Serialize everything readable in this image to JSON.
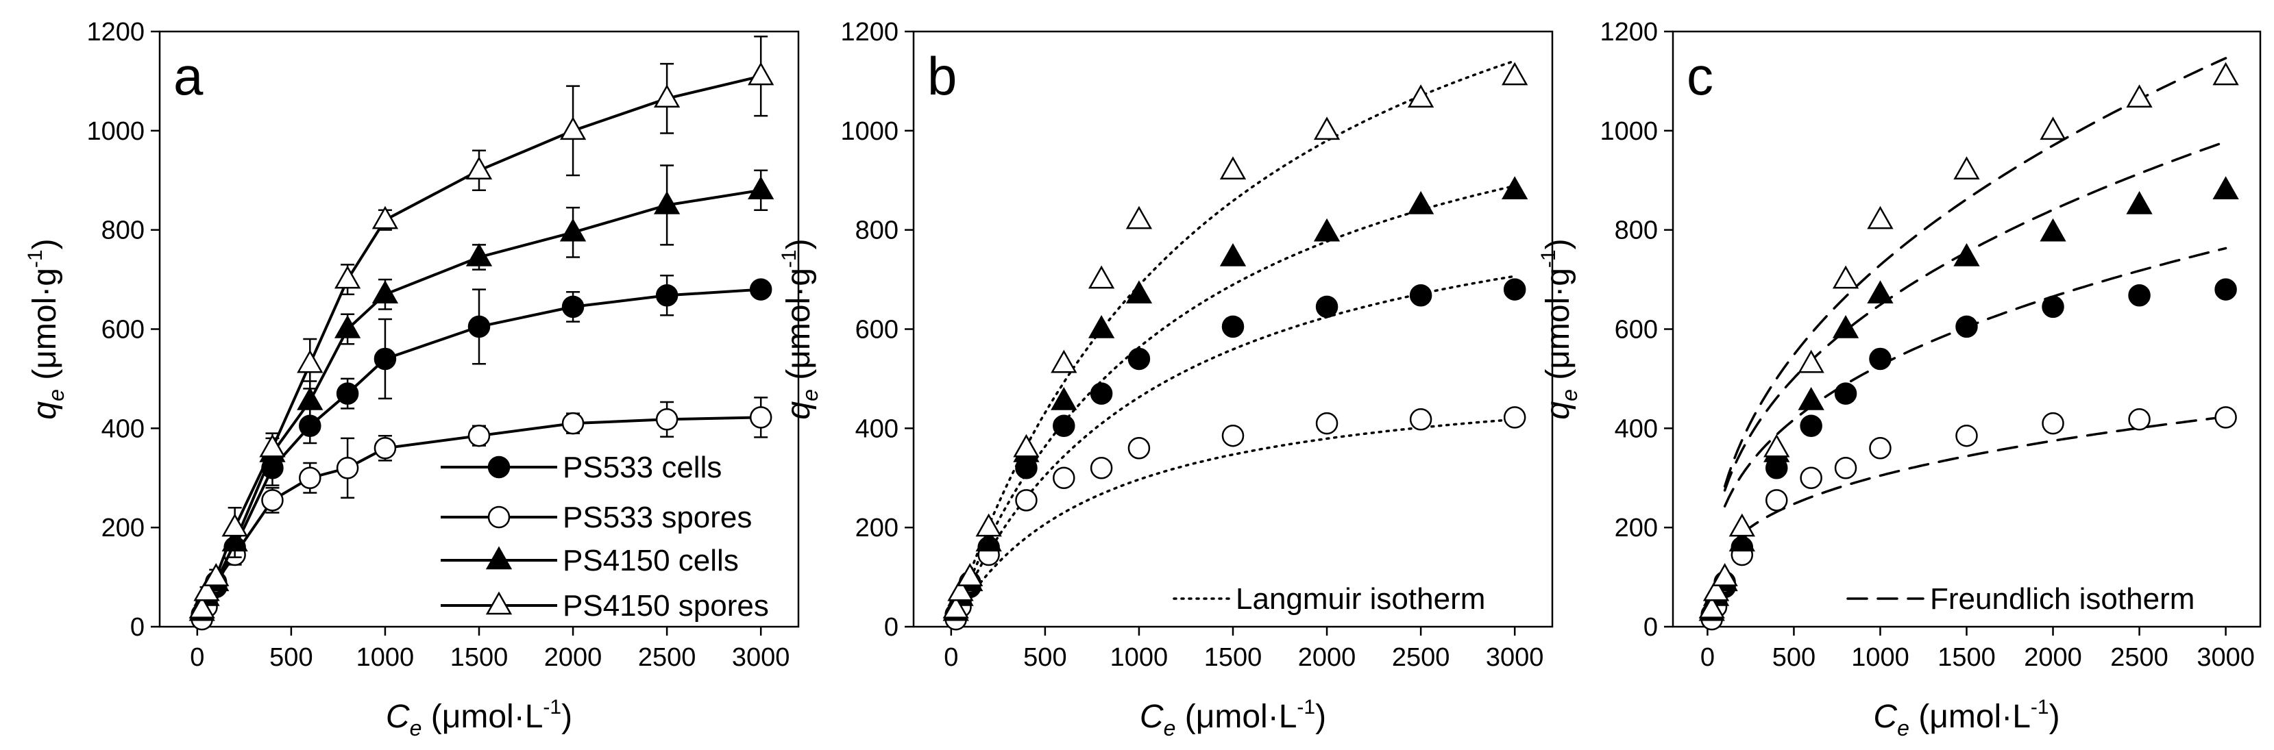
{
  "chart_data": [
    {
      "type": "scatter",
      "panel_label": "a",
      "xlim": [
        -200,
        3200
      ],
      "ylim": [
        0,
        1200
      ],
      "xticks": [
        0,
        500,
        1000,
        1500,
        2000,
        2500,
        3000
      ],
      "yticks": [
        0,
        200,
        400,
        600,
        800,
        1000,
        1200
      ],
      "xlabel": {
        "main": "C",
        "sub": "e",
        "unit": " (μmol·L",
        "sup": "-1",
        "close": ")"
      },
      "ylabel": {
        "main": "q",
        "sub": "e",
        "unit": " (μmol·g",
        "sup": "-1",
        "close": ")"
      },
      "series": [
        {
          "name": "PS533 cells",
          "marker": "circle",
          "filled": true,
          "connect": true,
          "x": [
            25,
            50,
            100,
            200,
            400,
            600,
            800,
            1000,
            1500,
            2000,
            2500,
            3000
          ],
          "y": [
            25,
            50,
            80,
            160,
            320,
            405,
            470,
            540,
            605,
            645,
            668,
            680
          ],
          "err": [
            0,
            8,
            12,
            25,
            35,
            35,
            30,
            80,
            75,
            30,
            40,
            15
          ]
        },
        {
          "name": "PS533 spores",
          "marker": "circle",
          "filled": false,
          "connect": true,
          "x": [
            25,
            50,
            100,
            200,
            400,
            600,
            800,
            1000,
            1500,
            2000,
            2500,
            3000
          ],
          "y": [
            15,
            40,
            90,
            145,
            255,
            300,
            320,
            360,
            385,
            410,
            418,
            422
          ],
          "err": [
            0,
            8,
            12,
            20,
            25,
            30,
            60,
            25,
            20,
            20,
            35,
            40
          ]
        },
        {
          "name": "PS4150 cells",
          "marker": "triangle",
          "filled": true,
          "connect": true,
          "x": [
            25,
            50,
            100,
            200,
            400,
            600,
            800,
            1000,
            1500,
            2000,
            2500,
            3000
          ],
          "y": [
            30,
            60,
            90,
            170,
            350,
            455,
            600,
            670,
            745,
            795,
            850,
            880
          ],
          "err": [
            0,
            8,
            12,
            30,
            30,
            40,
            30,
            30,
            25,
            50,
            80,
            40
          ]
        },
        {
          "name": "PS4150 spores",
          "marker": "triangle",
          "filled": false,
          "connect": true,
          "x": [
            25,
            50,
            100,
            200,
            400,
            600,
            800,
            1000,
            1500,
            2000,
            2500,
            3000
          ],
          "y": [
            35,
            70,
            100,
            200,
            360,
            530,
            700,
            820,
            920,
            1000,
            1065,
            1110
          ],
          "err": [
            0,
            10,
            15,
            40,
            30,
            50,
            30,
            20,
            40,
            90,
            70,
            80
          ]
        }
      ],
      "legend": {
        "position": "bottom-right",
        "entries": [
          "PS533 cells",
          "PS533 spores",
          "PS4150 cells",
          "PS4150 spores"
        ]
      }
    },
    {
      "type": "scatter",
      "panel_label": "b",
      "xlim": [
        -200,
        3200
      ],
      "ylim": [
        0,
        1200
      ],
      "xticks": [
        0,
        500,
        1000,
        1500,
        2000,
        2500,
        3000
      ],
      "yticks": [
        0,
        200,
        400,
        600,
        800,
        1000,
        1200
      ],
      "xlabel": {
        "main": "C",
        "sub": "e",
        "unit": " (μmol·L",
        "sup": "-1",
        "close": ")"
      },
      "ylabel": {
        "main": "q",
        "sub": "e",
        "unit": " (μmol·g",
        "sup": "-1",
        "close": ")"
      },
      "series": [
        {
          "name": "PS533 cells",
          "marker": "circle",
          "filled": true,
          "x": [
            25,
            50,
            100,
            200,
            400,
            600,
            800,
            1000,
            1500,
            2000,
            2500,
            3000
          ],
          "y": [
            25,
            50,
            80,
            160,
            320,
            405,
            470,
            540,
            605,
            645,
            668,
            680
          ]
        },
        {
          "name": "PS533 spores",
          "marker": "circle",
          "filled": false,
          "x": [
            25,
            50,
            100,
            200,
            400,
            600,
            800,
            1000,
            1500,
            2000,
            2500,
            3000
          ],
          "y": [
            15,
            40,
            90,
            145,
            255,
            300,
            320,
            360,
            385,
            410,
            418,
            422
          ]
        },
        {
          "name": "PS4150 cells",
          "marker": "triangle",
          "filled": true,
          "x": [
            25,
            50,
            100,
            200,
            400,
            600,
            800,
            1000,
            1500,
            2000,
            2500,
            3000
          ],
          "y": [
            30,
            60,
            90,
            170,
            350,
            455,
            600,
            670,
            745,
            795,
            850,
            880
          ]
        },
        {
          "name": "PS4150 spores",
          "marker": "triangle",
          "filled": false,
          "x": [
            25,
            50,
            100,
            200,
            400,
            600,
            800,
            1000,
            1500,
            2000,
            2500,
            3000
          ],
          "y": [
            35,
            70,
            100,
            200,
            360,
            530,
            700,
            820,
            920,
            1000,
            1065,
            1110
          ]
        }
      ],
      "fits": {
        "model": "langmuir",
        "style": "dotted",
        "params": [
          {
            "qmax": 960,
            "K": 0.00093
          },
          {
            "qmax": 525,
            "K": 0.0013
          },
          {
            "qmax": 1250,
            "K": 0.00082
          },
          {
            "qmax": 1700,
            "K": 0.00068
          }
        ]
      },
      "legend": {
        "position": "bottom-right",
        "entries": [
          "Langmuir isotherm"
        ]
      }
    },
    {
      "type": "scatter",
      "panel_label": "c",
      "xlim": [
        -200,
        3200
      ],
      "ylim": [
        0,
        1200
      ],
      "xticks": [
        0,
        500,
        1000,
        1500,
        2000,
        2500,
        3000
      ],
      "yticks": [
        0,
        200,
        400,
        600,
        800,
        1000,
        1200
      ],
      "xlabel": {
        "main": "C",
        "sub": "e",
        "unit": " (μmol·L",
        "sup": "-1",
        "close": ")"
      },
      "ylabel": {
        "main": "q",
        "sub": "e",
        "unit": " (μmol·g",
        "sup": "-1",
        "close": ")"
      },
      "series": [
        {
          "name": "PS533 cells",
          "marker": "circle",
          "filled": true,
          "x": [
            25,
            50,
            100,
            200,
            400,
            600,
            800,
            1000,
            1500,
            2000,
            2500,
            3000
          ],
          "y": [
            25,
            50,
            80,
            160,
            320,
            405,
            470,
            540,
            605,
            645,
            668,
            680
          ]
        },
        {
          "name": "PS533 spores",
          "marker": "circle",
          "filled": false,
          "x": [
            25,
            50,
            100,
            200,
            400,
            600,
            800,
            1000,
            1500,
            2000,
            2500,
            3000
          ],
          "y": [
            15,
            40,
            90,
            145,
            255,
            300,
            320,
            360,
            385,
            410,
            418,
            422
          ]
        },
        {
          "name": "PS4150 cells",
          "marker": "triangle",
          "filled": true,
          "x": [
            25,
            50,
            100,
            200,
            400,
            600,
            800,
            1000,
            1500,
            2000,
            2500,
            3000
          ],
          "y": [
            30,
            60,
            90,
            170,
            350,
            455,
            600,
            670,
            745,
            795,
            850,
            880
          ]
        },
        {
          "name": "PS4150 spores",
          "marker": "triangle",
          "filled": false,
          "x": [
            25,
            50,
            100,
            200,
            400,
            600,
            800,
            1000,
            1500,
            2000,
            2500,
            3000
          ],
          "y": [
            35,
            70,
            100,
            200,
            360,
            530,
            700,
            820,
            920,
            1000,
            1065,
            1110
          ]
        }
      ],
      "fits": {
        "model": "freundlich",
        "style": "dashed",
        "params": [
          {
            "K": 51.5,
            "n": 2.97,
            "x0": 100
          },
          {
            "K": 38.5,
            "n": 3.34,
            "x0": 200
          },
          {
            "K": 49.3,
            "n": 2.68,
            "x0": 100
          },
          {
            "K": 42.5,
            "n": 2.43,
            "x0": 100
          }
        ]
      },
      "legend": {
        "position": "bottom-right",
        "entries": [
          "Freundlich isotherm"
        ]
      }
    }
  ]
}
